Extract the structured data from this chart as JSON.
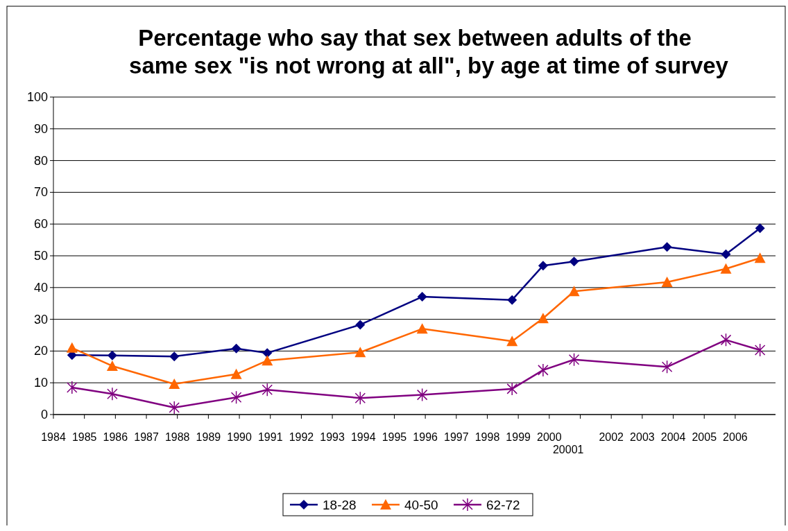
{
  "chart_data": {
    "type": "line",
    "title": "Percentage who say that sex between adults of the same sex \"is not wrong at all\", by age at time of survey",
    "x": [
      1984.6,
      1985.9,
      1987.9,
      1989.9,
      1990.9,
      1993.9,
      1995.9,
      1998.8,
      1999.8,
      2000.8,
      2003.8,
      2005.7,
      2006.8
    ],
    "series": [
      {
        "name": "18-28",
        "color": "#000080",
        "marker": "diamond",
        "values": [
          18.7,
          18.6,
          18.3,
          20.8,
          19.4,
          28.3,
          37.1,
          36.1,
          46.9,
          48.2,
          52.8,
          50.5,
          58.7
        ]
      },
      {
        "name": "40-50",
        "color": "#ff6600",
        "marker": "triangle",
        "values": [
          21,
          15.3,
          9.6,
          12.7,
          17,
          19.6,
          27,
          23.1,
          30.3,
          38.8,
          41.7,
          45.9,
          49.3
        ]
      },
      {
        "name": "62-72",
        "color": "#800080",
        "marker": "cross",
        "values": [
          8.5,
          6.5,
          2.2,
          5.4,
          7.8,
          5.2,
          6.2,
          8.1,
          14,
          17.3,
          15,
          23.5,
          20.3
        ]
      }
    ],
    "xlim": [
      1984,
      2007.3
    ],
    "xticks": [
      1984,
      1985,
      1986,
      1987,
      1988,
      1989,
      1990,
      1991,
      1992,
      1993,
      1994,
      1995,
      1996,
      1997,
      1998,
      1999,
      2000,
      {
        "value": 2001,
        "label": null
      },
      2002,
      2003,
      2004,
      2005,
      2006
    ],
    "ylim": [
      0,
      100
    ],
    "yticks": [
      0,
      10,
      20,
      30,
      40,
      50,
      60,
      70,
      80,
      90,
      100
    ],
    "grid": "y",
    "legend": "bottom",
    "annotations": [
      "20001"
    ]
  }
}
